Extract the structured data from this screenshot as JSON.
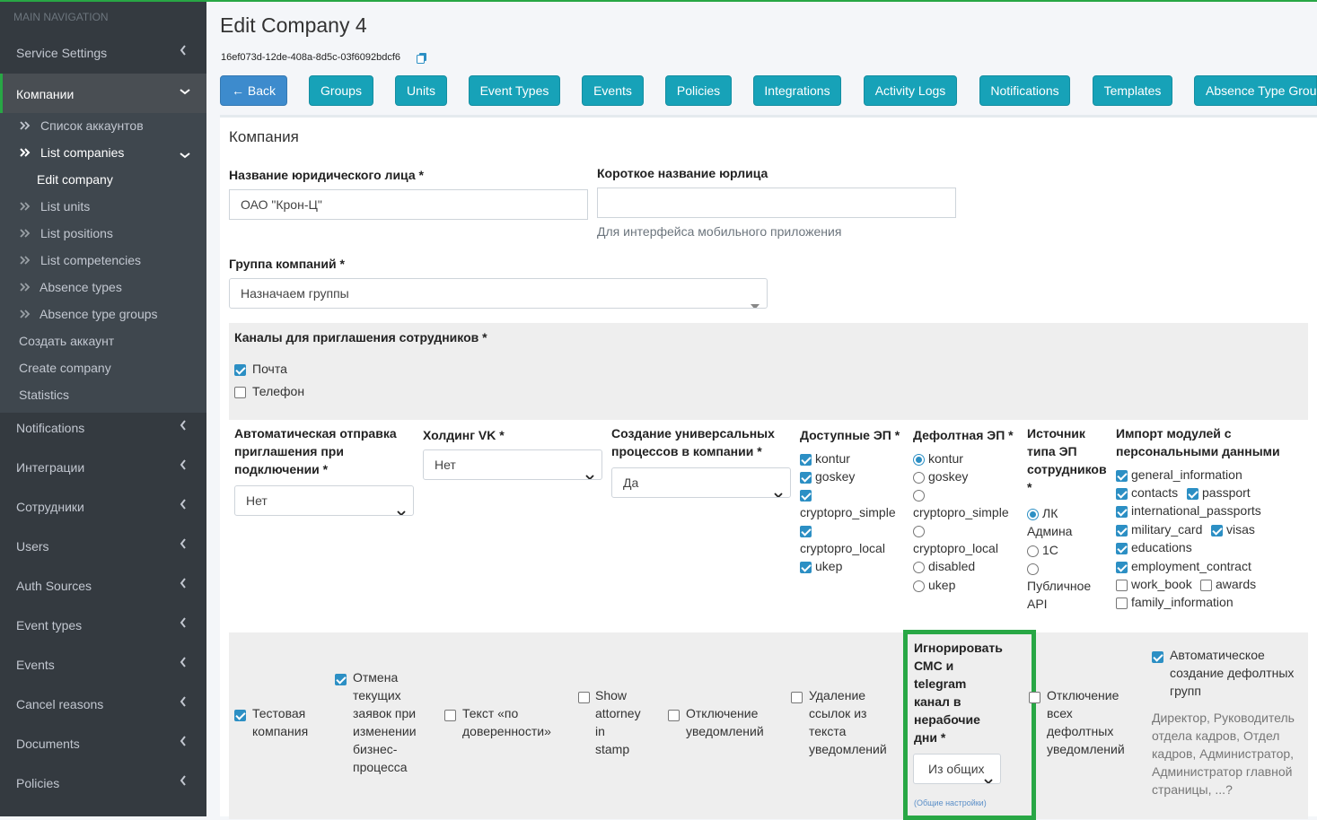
{
  "sidebar": {
    "header": "MAIN NAVIGATION",
    "items": [
      {
        "label": "Service Settings"
      },
      {
        "label": "Компании"
      },
      {
        "label": "Notifications"
      },
      {
        "label": "Интеграции"
      },
      {
        "label": "Сотрудники"
      },
      {
        "label": "Users"
      },
      {
        "label": "Auth Sources"
      },
      {
        "label": "Event types"
      },
      {
        "label": "Events"
      },
      {
        "label": "Cancel reasons"
      },
      {
        "label": "Documents"
      },
      {
        "label": "Policies"
      }
    ],
    "subitems": [
      {
        "label": "Список аккаунтов"
      },
      {
        "label": "List companies"
      },
      {
        "label": "Edit company"
      },
      {
        "label": "List units"
      },
      {
        "label": "List positions"
      },
      {
        "label": "List competencies"
      },
      {
        "label": "Absence types"
      },
      {
        "label": "Absence type groups"
      },
      {
        "label": "Создать аккаунт"
      },
      {
        "label": "Create company"
      },
      {
        "label": "Statistics"
      }
    ]
  },
  "header": {
    "title": "Edit Company 4",
    "uuid": "16ef073d-12de-408a-8d5c-03f6092bdcf6"
  },
  "toolbar": {
    "buttons": [
      {
        "label": "← Back"
      },
      {
        "label": "Groups"
      },
      {
        "label": "Units"
      },
      {
        "label": "Event Types"
      },
      {
        "label": "Events"
      },
      {
        "label": "Policies"
      },
      {
        "label": "Integrations"
      },
      {
        "label": "Activity Logs"
      },
      {
        "label": "Notifications"
      },
      {
        "label": "Templates"
      },
      {
        "label": "Absence Type Groups"
      }
    ]
  },
  "form": {
    "section_title": "Компания",
    "legal_name": {
      "label": "Название юридического лица *",
      "value": "ОАО \"Крон-Ц\""
    },
    "short_name": {
      "label": "Короткое название юрлица",
      "value": "",
      "hint": "Для интерфейса мобильного приложения"
    },
    "company_group": {
      "label": "Группа компаний *",
      "value": "Назначаем группы"
    },
    "invite_channels": {
      "label": "Каналы для приглашения сотрудников *",
      "options": [
        {
          "label": "Почта",
          "checked": true
        },
        {
          "label": "Телефон",
          "checked": false
        }
      ]
    },
    "auto_invite": {
      "label_lines": [
        "Автоматическая отправка",
        "приглашения при",
        "подключении *"
      ],
      "value": "Нет"
    },
    "holding_vk": {
      "label": "Холдинг VK *",
      "value": "Нет"
    },
    "universal_processes": {
      "label_lines": [
        "Создание универсальных",
        "процессов в компании *"
      ],
      "value": "Да"
    },
    "available_ep": {
      "label": "Доступные ЭП *",
      "options": [
        {
          "label": "kontur",
          "checked": true
        },
        {
          "label": "goskey",
          "checked": true
        },
        {
          "label": "cryptopro_simple",
          "checked": true
        },
        {
          "label": "cryptopro_local",
          "checked": true
        },
        {
          "label": "ukep",
          "checked": true
        }
      ]
    },
    "default_ep": {
      "label": "Дефолтная ЭП *",
      "options": [
        {
          "label": "kontur",
          "selected": true
        },
        {
          "label": "goskey",
          "selected": false
        },
        {
          "label": "cryptopro_simple",
          "selected": false
        },
        {
          "label": "cryptopro_local",
          "selected": false
        },
        {
          "label": "disabled",
          "selected": false
        },
        {
          "label": "ukep",
          "selected": false
        }
      ]
    },
    "ep_source": {
      "label_lines": [
        "Источник",
        "типа ЭП",
        "сотрудников",
        "*"
      ],
      "options": [
        {
          "label_lines": [
            "ЛК",
            "Админа"
          ],
          "selected": true
        },
        {
          "label_lines": [
            "1С"
          ],
          "selected": false
        },
        {
          "label_lines": [
            "Публичное",
            "API"
          ],
          "selected": false
        }
      ]
    },
    "import_modules": {
      "label_lines": [
        "Импорт модулей с",
        "персональными данными"
      ],
      "options": [
        {
          "label": "general_information",
          "checked": true
        },
        {
          "label": "contacts",
          "checked": true
        },
        {
          "label": "passport",
          "checked": true
        },
        {
          "label": "international_passports",
          "checked": true
        },
        {
          "label": "military_card",
          "checked": true
        },
        {
          "label": "visas",
          "checked": true
        },
        {
          "label": "educations",
          "checked": true
        },
        {
          "label": "employment_contract",
          "checked": true
        },
        {
          "label": "work_book",
          "checked": false
        },
        {
          "label": "awards",
          "checked": false
        },
        {
          "label": "family_information",
          "checked": false
        }
      ]
    },
    "flags": {
      "test_company": {
        "label_lines": [
          "Тестовая",
          "компания"
        ],
        "checked": true
      },
      "cancel_requests": {
        "label_lines": [
          "Отмена",
          "текущих",
          "заявок при",
          "изменении",
          "бизнес-",
          "процесса"
        ],
        "checked": true
      },
      "power_of_attorney": {
        "label_lines": [
          "Текст «по",
          "доверенности»"
        ],
        "checked": false
      },
      "show_attorney": {
        "label_lines": [
          "Show",
          "attorney",
          "in",
          "stamp"
        ],
        "checked": false
      },
      "disable_notifications": {
        "label_lines": [
          "Отключение",
          "уведомлений"
        ],
        "checked": false
      },
      "remove_links": {
        "label_lines": [
          "Удаление",
          "ссылок из",
          "текста",
          "уведомлений"
        ],
        "checked": false
      },
      "ignore_sms": {
        "label_lines": [
          "Игнорировать",
          "СМС и",
          "telegram",
          "канал в",
          "нерабочие",
          "дни *"
        ],
        "value": "Из общих",
        "link": "(Общие настройки)"
      },
      "disable_default_notifications": {
        "label_lines": [
          "Отключение",
          "всех",
          "дефолтных",
          "уведомлений"
        ],
        "checked": false
      },
      "auto_default_groups": {
        "label_lines": [
          "Автоматическое",
          "создание дефолтных",
          "групп"
        ],
        "checked": true,
        "description_lines": [
          "Директор, Руководитель",
          "отдела кадров, Отдел",
          "кадров, Администратор,",
          "Администратор главной",
          "страницы, ...?"
        ]
      }
    }
  }
}
